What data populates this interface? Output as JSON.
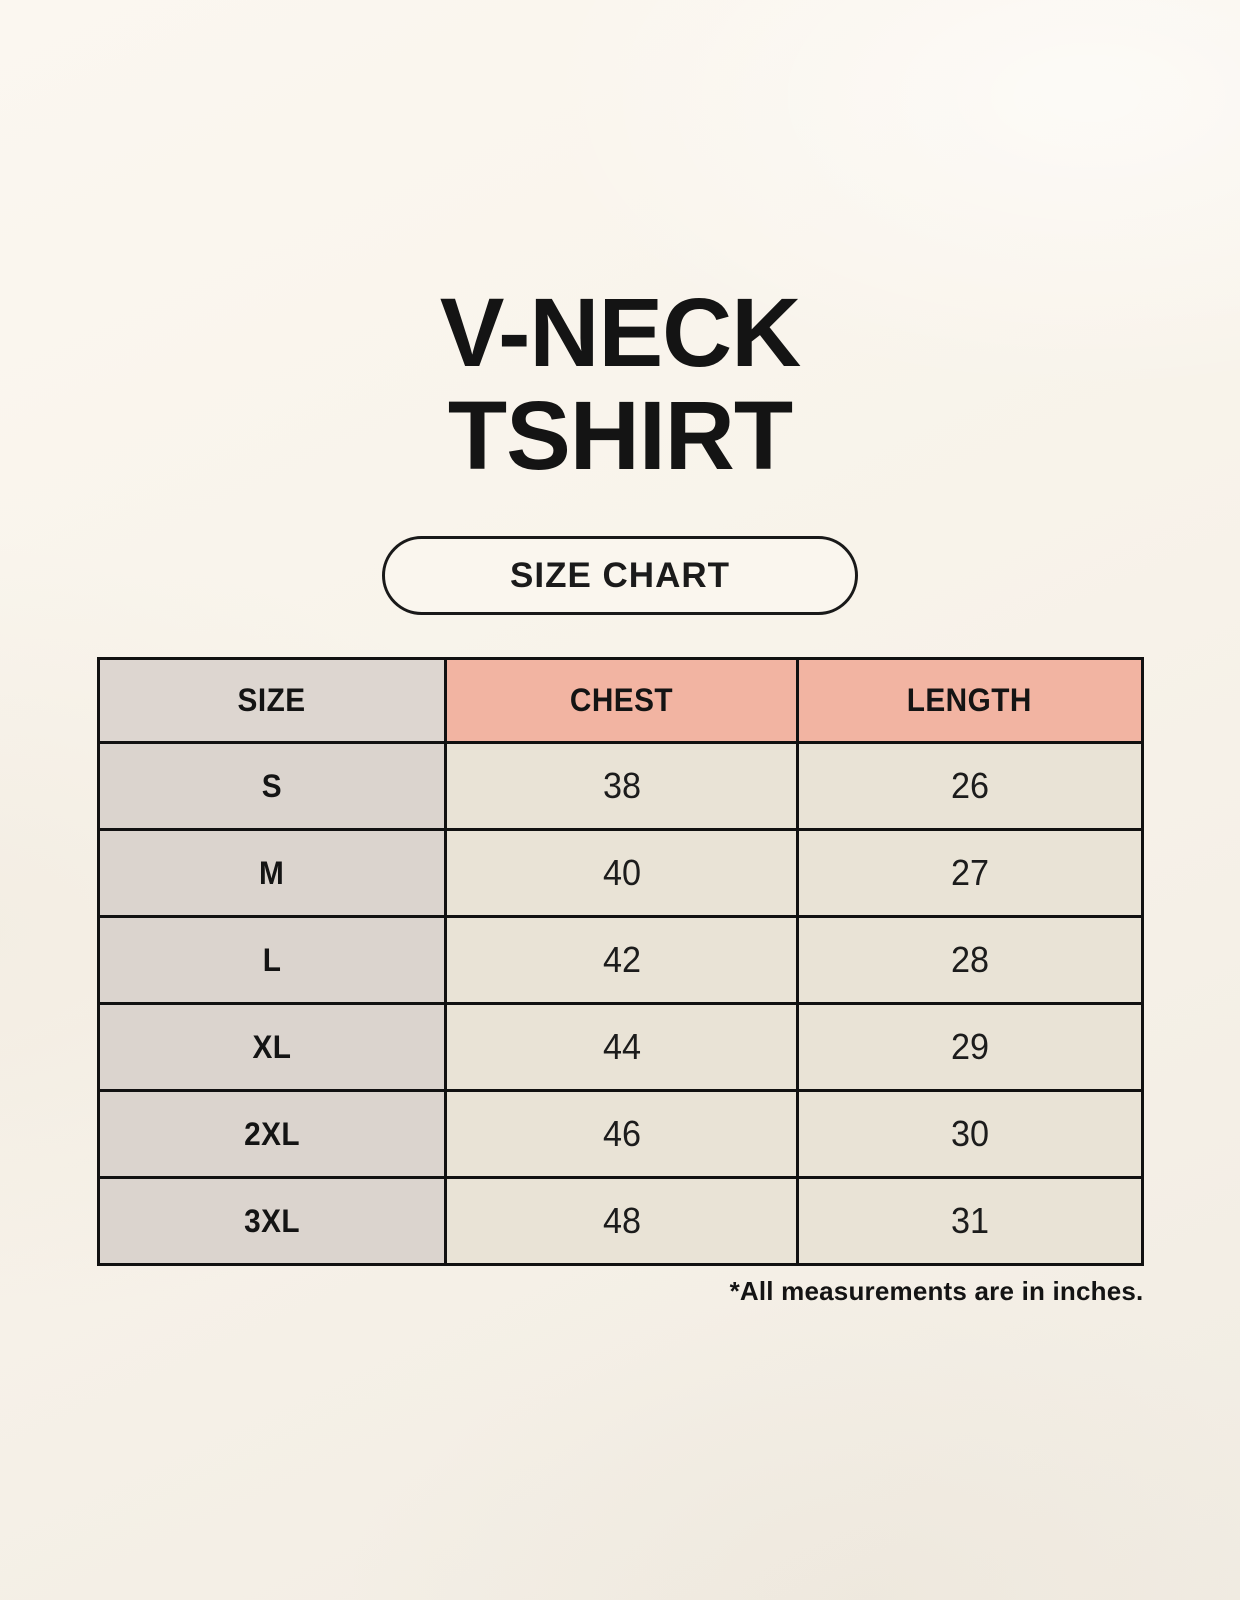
{
  "page": {
    "title_line1": "V-NECK",
    "title_line2": "TSHIRT",
    "badge_label": "SIZE CHART",
    "footnote": "*All measurements are in inches."
  },
  "colors": {
    "background_cream": "#f8f3ea",
    "header_pink": "#f2b4a2",
    "size_column_gray": "#dbd4ce",
    "value_cell_cream": "#e9e3d6",
    "border_black": "#111111",
    "text_black": "#141414"
  },
  "chart_data": {
    "type": "table",
    "title": "V-NECK TSHIRT — SIZE CHART",
    "columns": [
      "SIZE",
      "CHEST",
      "LENGTH"
    ],
    "rows": [
      [
        "S",
        "38",
        "26"
      ],
      [
        "M",
        "40",
        "27"
      ],
      [
        "L",
        "42",
        "28"
      ],
      [
        "XL",
        "44",
        "29"
      ],
      [
        "2XL",
        "46",
        "30"
      ],
      [
        "3XL",
        "48",
        "31"
      ]
    ],
    "units_note": "*All measurements are in inches.",
    "layout_hints": {
      "header_row_colors": [
        "gray",
        "pink",
        "pink"
      ],
      "first_column_color": "gray",
      "value_cells_color": "cream",
      "grid": "black solid borders"
    }
  }
}
